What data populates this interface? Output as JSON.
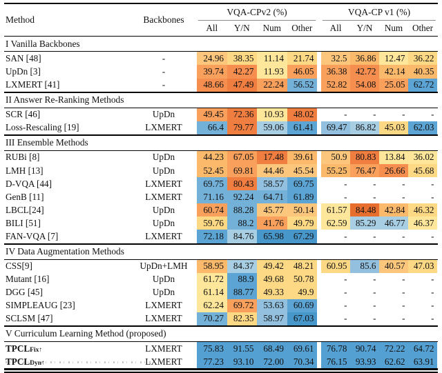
{
  "header": {
    "method_label": "Method",
    "backbones_label": "Backbones",
    "group1_label": "VQA-CPv2 (%)",
    "group2_label": "VQA-CP v1 (%)",
    "subcols": [
      "All",
      "Y/N",
      "Num",
      "Other"
    ]
  },
  "palette": {
    "y": "#FEE69A",
    "y2": "#FDD985",
    "lo": "#FCC77D",
    "lo2": "#FBB96C",
    "o": "#F9A05C",
    "o2": "#F68E4F",
    "do": "#F07E41",
    "do2": "#E86E2D",
    "lb": "#A8CEE4",
    "lb2": "#92C0DE",
    "b": "#74B1D9",
    "b2": "#5CA4D3",
    "db": "#4897CA",
    "tp": "#55A0D2"
  },
  "sections": [
    {
      "label": "I Vanilla Backbones",
      "rows": [
        {
          "method": "SAN [48]",
          "sub": "",
          "bold": false,
          "backbone": "-",
          "cpv2": [
            [
              "24.96",
              "lo"
            ],
            [
              "38.35",
              "y2"
            ],
            [
              "11.14",
              "y"
            ],
            [
              "21.74",
              "y2"
            ]
          ],
          "v1": [
            [
              "32.5",
              "lo"
            ],
            [
              "36.86",
              "lo2"
            ],
            [
              "12.47",
              "y"
            ],
            [
              "36.22",
              "y2"
            ]
          ]
        },
        {
          "method": "UpDn [3]",
          "sub": "",
          "bold": false,
          "backbone": "-",
          "cpv2": [
            [
              "39.74",
              "o"
            ],
            [
              "42.27",
              "o2"
            ],
            [
              "11.93",
              "y"
            ],
            [
              "46.05",
              "o"
            ]
          ],
          "v1": [
            [
              "36.38",
              "o"
            ],
            [
              "42.72",
              "o2"
            ],
            [
              "42.14",
              "lo2"
            ],
            [
              "40.35",
              "lo2"
            ]
          ]
        },
        {
          "method": "LXMERT [41]",
          "sub": "",
          "bold": false,
          "backbone": "-",
          "cpv2": [
            [
              "48.66",
              "o2"
            ],
            [
              "47.49",
              "do"
            ],
            [
              "22.24",
              "o"
            ],
            [
              "56.52",
              "b"
            ]
          ],
          "v1": [
            [
              "52.82",
              "o"
            ],
            [
              "54.08",
              "o2"
            ],
            [
              "25.05",
              "o"
            ],
            [
              "62.72",
              "b2"
            ]
          ]
        }
      ]
    },
    {
      "label": "II Answer Re-Ranking Methods",
      "rows": [
        {
          "method": "SCR [46]",
          "sub": "",
          "bold": false,
          "backbone": "UpDn",
          "cpv2": [
            [
              "49.45",
              "o"
            ],
            [
              "72.36",
              "do"
            ],
            [
              "10.93",
              "y"
            ],
            [
              "48.02",
              "do"
            ]
          ],
          "v1": [
            [
              "-",
              ""
            ],
            [
              "-",
              ""
            ],
            [
              "-",
              ""
            ],
            [
              "-",
              ""
            ]
          ]
        },
        {
          "method": "Loss-Rescaling [19]",
          "sub": "",
          "bold": false,
          "backbone": "LXMERT",
          "cpv2": [
            [
              "66.4",
              "b"
            ],
            [
              "79.77",
              "do"
            ],
            [
              "59.06",
              "lb"
            ],
            [
              "61.41",
              "b2"
            ]
          ],
          "v1": [
            [
              "69.47",
              "lb2"
            ],
            [
              "86.82",
              "lb"
            ],
            [
              "45.03",
              "y2"
            ],
            [
              "62.03",
              "b2"
            ]
          ]
        }
      ]
    },
    {
      "label": "III Ensemble Methods",
      "rows": [
        {
          "method": "RUBi [8]",
          "sub": "",
          "bold": false,
          "backbone": "UpDn",
          "cpv2": [
            [
              "44.23",
              "lo2"
            ],
            [
              "67.05",
              "o"
            ],
            [
              "17.48",
              "do"
            ],
            [
              "39.61",
              "lo2"
            ]
          ],
          "v1": [
            [
              "50.9",
              "lo"
            ],
            [
              "80.83",
              "do"
            ],
            [
              "13.84",
              "y"
            ],
            [
              "36.02",
              "y"
            ]
          ]
        },
        {
          "method": "LMH [13]",
          "sub": "",
          "bold": false,
          "backbone": "UpDn",
          "cpv2": [
            [
              "52.45",
              "lo2"
            ],
            [
              "69.81",
              "o"
            ],
            [
              "44.46",
              "lo"
            ],
            [
              "45.54",
              "lo"
            ]
          ],
          "v1": [
            [
              "55.25",
              "lo2"
            ],
            [
              "76.47",
              "o"
            ],
            [
              "26.66",
              "o2"
            ],
            [
              "45.68",
              "y2"
            ]
          ]
        },
        {
          "method": "D-VQA [44]",
          "sub": "",
          "bold": false,
          "backbone": "LXMERT",
          "cpv2": [
            [
              "69.75",
              "b"
            ],
            [
              "80.43",
              "do"
            ],
            [
              "58.57",
              "lb2"
            ],
            [
              "69.75",
              "b2"
            ]
          ],
          "v1": [
            [
              "-",
              ""
            ],
            [
              "-",
              ""
            ],
            [
              "-",
              ""
            ],
            [
              "-",
              ""
            ]
          ]
        },
        {
          "method": "GenB [11]",
          "sub": "",
          "bold": false,
          "backbone": "LXMERT",
          "cpv2": [
            [
              "71.16",
              "b"
            ],
            [
              "92.24",
              "b"
            ],
            [
              "64.71",
              "b"
            ],
            [
              "61.89",
              "b2"
            ]
          ],
          "v1": [
            [
              "-",
              ""
            ],
            [
              "-",
              ""
            ],
            [
              "-",
              ""
            ],
            [
              "-",
              ""
            ]
          ]
        },
        {
          "method": "LBCL[24]",
          "sub": "",
          "bold": false,
          "backbone": "UpDn",
          "cpv2": [
            [
              "60.74",
              "o"
            ],
            [
              "88.28",
              "b"
            ],
            [
              "45.77",
              "lo"
            ],
            [
              "50.14",
              "lo"
            ]
          ],
          "v1": [
            [
              "61.57",
              "y"
            ],
            [
              "84.48",
              "do2"
            ],
            [
              "42.84",
              "lo2"
            ],
            [
              "46.32",
              "y2"
            ]
          ]
        },
        {
          "method": "BILI [51]",
          "sub": "",
          "bold": false,
          "backbone": "UpDn",
          "cpv2": [
            [
              "59.76",
              "y2"
            ],
            [
              "88.2",
              "b"
            ],
            [
              "41.76",
              "o"
            ],
            [
              "49.79",
              "y2"
            ]
          ],
          "v1": [
            [
              "62.59",
              "y"
            ],
            [
              "85.29",
              "lb"
            ],
            [
              "46.77",
              "lb"
            ],
            [
              "46.37",
              "y"
            ]
          ]
        },
        {
          "method": "FAN-VQA [7]",
          "sub": "",
          "bold": false,
          "backbone": "LXMERT",
          "cpv2": [
            [
              "72.18",
              "b2"
            ],
            [
              "84.76",
              "lb"
            ],
            [
              "65.98",
              "db"
            ],
            [
              "67.29",
              "db"
            ]
          ],
          "v1": [
            [
              "-",
              ""
            ],
            [
              "-",
              ""
            ],
            [
              "-",
              ""
            ],
            [
              "-",
              ""
            ]
          ]
        }
      ]
    },
    {
      "label": "IV Data Augmentation Methods",
      "rows": [
        {
          "method": "CSS[9]",
          "sub": "",
          "bold": false,
          "backbone": "UpDn+LMH",
          "cpv2": [
            [
              "58.95",
              "lo2"
            ],
            [
              "84.37",
              "lb"
            ],
            [
              "49.42",
              "y2"
            ],
            [
              "48.21",
              "y2"
            ]
          ],
          "v1": [
            [
              "60.95",
              "y2"
            ],
            [
              "85.6",
              "lb2"
            ],
            [
              "40.57",
              "lo"
            ],
            [
              "47.03",
              "y2"
            ]
          ]
        },
        {
          "method": "Mutant [16]",
          "sub": "",
          "bold": false,
          "backbone": "UpDn",
          "cpv2": [
            [
              "61.72",
              "y"
            ],
            [
              "88.9",
              "b2"
            ],
            [
              "49.68",
              "y2"
            ],
            [
              "50.78",
              "y2"
            ]
          ],
          "v1": [
            [
              "-",
              ""
            ],
            [
              "-",
              ""
            ],
            [
              "-",
              ""
            ],
            [
              "-",
              ""
            ]
          ]
        },
        {
          "method": "DGG [45]",
          "sub": "",
          "bold": false,
          "backbone": "UpDn",
          "cpv2": [
            [
              "61.14",
              "y"
            ],
            [
              "88.77",
              "b2"
            ],
            [
              "49.33",
              "y2"
            ],
            [
              "49.9",
              "y2"
            ]
          ],
          "v1": [
            [
              "-",
              ""
            ],
            [
              "-",
              ""
            ],
            [
              "-",
              ""
            ],
            [
              "-",
              ""
            ]
          ]
        },
        {
          "method": "SIMPLEAUG [23]",
          "sub": "",
          "bold": false,
          "backbone": "LXMERT",
          "cpv2": [
            [
              "62.24",
              "y"
            ],
            [
              "69.72",
              "o"
            ],
            [
              "53.63",
              "lb2"
            ],
            [
              "60.69",
              "b2"
            ]
          ],
          "v1": [
            [
              "-",
              ""
            ],
            [
              "-",
              ""
            ],
            [
              "-",
              ""
            ],
            [
              "-",
              ""
            ]
          ]
        },
        {
          "method": "SCLSM [47]",
          "sub": "",
          "bold": false,
          "backbone": "LXMERT",
          "cpv2": [
            [
              "70.27",
              "b"
            ],
            [
              "82.35",
              "y2"
            ],
            [
              "58.97",
              "lb2"
            ],
            [
              "67.03",
              "db"
            ]
          ],
          "v1": [
            [
              "-",
              ""
            ],
            [
              "-",
              ""
            ],
            [
              "-",
              ""
            ],
            [
              "-",
              ""
            ]
          ]
        }
      ]
    },
    {
      "label": "V Curriculum Learning Method (proposed)",
      "rows": [
        {
          "method": "TPCL",
          "sub": "Fix↑",
          "bold": true,
          "backbone": "LXMERT",
          "cpv2": [
            [
              "75.83",
              "tp"
            ],
            [
              "91.55",
              "tp"
            ],
            [
              "68.49",
              "tp"
            ],
            [
              "69.61",
              "tp"
            ]
          ],
          "v1": [
            [
              "76.78",
              "tp"
            ],
            [
              "90.74",
              "tp"
            ],
            [
              "72.22",
              "tp"
            ],
            [
              "64.72",
              "tp"
            ]
          ]
        },
        {
          "method": "TPCL",
          "sub": "Dyn↑",
          "bold": true,
          "backbone": "LXMERT",
          "cpv2": [
            [
              "77.23",
              "tp"
            ],
            [
              "93.10",
              "tp"
            ],
            [
              "72.00",
              "tp"
            ],
            [
              "70.34",
              "tp"
            ]
          ],
          "v1": [
            [
              "76.15",
              "tp"
            ],
            [
              "93.93",
              "tp"
            ],
            [
              "62.62",
              "tp"
            ],
            [
              "63.91",
              "tp"
            ]
          ]
        }
      ]
    }
  ]
}
